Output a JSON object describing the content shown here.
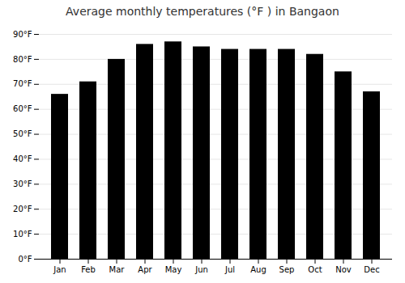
{
  "chart_data": {
    "type": "bar",
    "title": "Average monthly temperatures (°F ) in Bangaon",
    "categories": [
      "Jan",
      "Feb",
      "Mar",
      "Apr",
      "May",
      "Jun",
      "Jul",
      "Aug",
      "Sep",
      "Oct",
      "Nov",
      "Dec"
    ],
    "values": [
      66,
      71,
      80,
      86,
      87,
      85,
      84,
      84,
      84,
      82,
      75,
      67
    ],
    "ylim": [
      0,
      90
    ],
    "yticks": [
      {
        "value": 0,
        "label": "0°F"
      },
      {
        "value": 10,
        "label": "10°F"
      },
      {
        "value": 20,
        "label": "20°F"
      },
      {
        "value": 30,
        "label": "30°F"
      },
      {
        "value": 40,
        "label": "40°F"
      },
      {
        "value": 50,
        "label": "50°F"
      },
      {
        "value": 60,
        "label": "60°F"
      },
      {
        "value": 70,
        "label": "70°F"
      },
      {
        "value": 80,
        "label": "80°F"
      },
      {
        "value": 90,
        "label": "90°F"
      }
    ],
    "grid": true
  }
}
